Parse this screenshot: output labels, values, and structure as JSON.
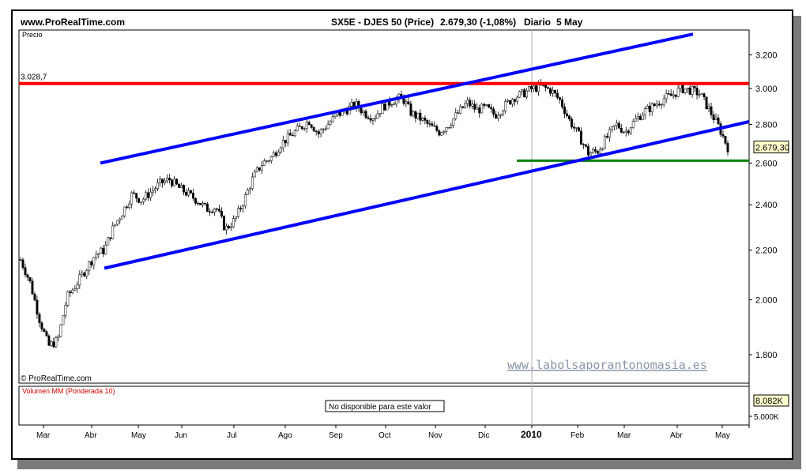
{
  "header": {
    "site": "www.ProRealTime.com",
    "instrument": "SX5E - DJES 50 (Price)",
    "last_value": "2.679,30 (-1,08%)",
    "period": "Diario",
    "date": "5 May"
  },
  "price_panel": {
    "label": "Precio",
    "copyright": "© ProRealTime.com",
    "watermark": "www.labolsaporantonomasia.es",
    "last_price_tag": "2.679,30",
    "resistance_label": "3.028,7"
  },
  "volume_panel": {
    "label": "Volumen MM (Ponderada 10)",
    "message": "No disponible para este valor",
    "tag": "8.082K",
    "tick": "5.000K"
  },
  "colors": {
    "resistance": "#ff0000",
    "channel": "#0000ff",
    "support": "#008000",
    "candle_up": "#ffffff",
    "candle_down": "#000000",
    "volume_label": "#cc0000",
    "watermark": "#8a96a8"
  },
  "chart_data": {
    "type": "candlestick",
    "series_name": "SX5E - DJES 50",
    "x_ticks": [
      "Mar",
      "Abr",
      "May",
      "Jun",
      "Jul",
      "Ago",
      "Sep",
      "Oct",
      "Nov",
      "Dic",
      "2010",
      "Feb",
      "Mar",
      "Abr",
      "May"
    ],
    "y_ticks": [
      "1.800",
      "2.000",
      "2.200",
      "2.400",
      "2.600",
      "2.800",
      "3.000",
      "3.200"
    ],
    "y_tick_values": [
      1800,
      2000,
      2200,
      2400,
      2600,
      2800,
      3000,
      3200
    ],
    "yscale": "log",
    "ylim": [
      1740,
      3340
    ],
    "closes_weekly_approx": [
      2160,
      2070,
      1930,
      1830,
      1850,
      2010,
      2060,
      2120,
      2180,
      2200,
      2300,
      2370,
      2450,
      2420,
      2460,
      2500,
      2520,
      2480,
      2450,
      2420,
      2380,
      2390,
      2290,
      2330,
      2420,
      2530,
      2600,
      2630,
      2700,
      2740,
      2780,
      2820,
      2750,
      2800,
      2850,
      2880,
      2910,
      2860,
      2840,
      2900,
      2930,
      2950,
      2860,
      2830,
      2790,
      2760,
      2800,
      2860,
      2920,
      2880,
      2890,
      2850,
      2900,
      2950,
      2970,
      3000,
      3010,
      2990,
      2930,
      2820,
      2740,
      2650,
      2660,
      2730,
      2800,
      2760,
      2820,
      2870,
      2900,
      2940,
      2960,
      3000,
      2990,
      2970,
      2880,
      2790,
      2679
    ],
    "resistance": 3028.7,
    "support": 2612,
    "channel_upper": {
      "start_value": 2600,
      "end_value": 3330
    },
    "channel_lower": {
      "start_value": 2125,
      "end_value": 2815
    },
    "volume_panel_message": "No disponible para este valor"
  }
}
